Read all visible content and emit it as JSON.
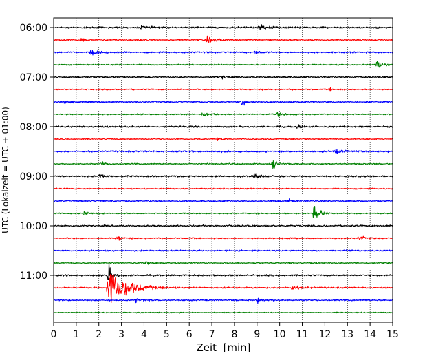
{
  "chart_data": {
    "type": "line",
    "title": "",
    "xlabel": "Zeit  [min]",
    "ylabel": "UTC (Lokalzeit = UTC + 01:00)",
    "xlim": [
      0,
      15
    ],
    "x_ticks": [
      "0",
      "1",
      "2",
      "3",
      "4",
      "5",
      "6",
      "7",
      "8",
      "9",
      "10",
      "11",
      "12",
      "13",
      "14",
      "15"
    ],
    "y_tick_labels": [
      "06:00",
      "07:00",
      "08:00",
      "09:00",
      "10:00",
      "11:00"
    ],
    "traces_per_hour": 4,
    "trace_minutes": 15,
    "grid": "vertical-dotted",
    "trace_color_cycle": [
      "#000000",
      "#ff0000",
      "#0000ff",
      "#008000"
    ],
    "series": [
      {
        "start": "06:00",
        "color": "#000000",
        "noise": 0.8,
        "events": [
          {
            "x": 3.9,
            "amp": 2.5,
            "dur": 0.2
          },
          {
            "x": 9.1,
            "amp": 3,
            "dur": 0.3
          }
        ]
      },
      {
        "start": "06:15",
        "color": "#ff0000",
        "noise": 0.7,
        "events": [
          {
            "x": 1.2,
            "amp": 2,
            "dur": 0.2
          },
          {
            "x": 6.8,
            "amp": 2.5,
            "dur": 0.3
          }
        ]
      },
      {
        "start": "06:30",
        "color": "#0000ff",
        "noise": 0.7,
        "events": [
          {
            "x": 1.6,
            "amp": 2.5,
            "dur": 0.3
          },
          {
            "x": 8.9,
            "amp": 2,
            "dur": 0.2
          }
        ]
      },
      {
        "start": "06:45",
        "color": "#008000",
        "noise": 0.6,
        "events": [
          {
            "x": 14.3,
            "amp": 6,
            "dur": 0.15
          }
        ]
      },
      {
        "start": "07:00",
        "color": "#000000",
        "noise": 0.8,
        "events": [
          {
            "x": 7.4,
            "amp": 2,
            "dur": 0.2
          }
        ]
      },
      {
        "start": "07:15",
        "color": "#ff0000",
        "noise": 0.6,
        "events": [
          {
            "x": 12.2,
            "amp": 1.5,
            "dur": 0.2
          }
        ]
      },
      {
        "start": "07:30",
        "color": "#0000ff",
        "noise": 0.7,
        "events": [
          {
            "x": 0.5,
            "amp": 2.5,
            "dur": 0.2
          },
          {
            "x": 8.3,
            "amp": 4,
            "dur": 0.2
          }
        ]
      },
      {
        "start": "07:45",
        "color": "#008000",
        "noise": 0.6,
        "events": [
          {
            "x": 6.6,
            "amp": 2.5,
            "dur": 0.3
          },
          {
            "x": 9.9,
            "amp": 3,
            "dur": 0.2
          }
        ]
      },
      {
        "start": "08:00",
        "color": "#000000",
        "noise": 0.8,
        "events": [
          {
            "x": 10.8,
            "amp": 1.5,
            "dur": 0.2
          }
        ]
      },
      {
        "start": "08:15",
        "color": "#ff0000",
        "noise": 0.6,
        "events": [
          {
            "x": 7.2,
            "amp": 1.5,
            "dur": 0.2
          }
        ]
      },
      {
        "start": "08:30",
        "color": "#0000ff",
        "noise": 0.8,
        "events": [
          {
            "x": 12.4,
            "amp": 2,
            "dur": 0.3
          }
        ]
      },
      {
        "start": "08:45",
        "color": "#008000",
        "noise": 0.6,
        "events": [
          {
            "x": 2.1,
            "amp": 2,
            "dur": 0.2
          },
          {
            "x": 9.7,
            "amp": 5,
            "dur": 0.15
          }
        ]
      },
      {
        "start": "09:00",
        "color": "#000000",
        "noise": 0.8,
        "events": [
          {
            "x": 2,
            "amp": 3,
            "dur": 0.2
          },
          {
            "x": 8.9,
            "amp": 3,
            "dur": 0.2
          }
        ]
      },
      {
        "start": "09:15",
        "color": "#ff0000",
        "noise": 0.6,
        "events": []
      },
      {
        "start": "09:30",
        "color": "#0000ff",
        "noise": 0.7,
        "events": [
          {
            "x": 10.4,
            "amp": 2,
            "dur": 0.2
          }
        ]
      },
      {
        "start": "09:45",
        "color": "#008000",
        "noise": 0.6,
        "events": [
          {
            "x": 1.3,
            "amp": 2,
            "dur": 0.2
          },
          {
            "x": 11.5,
            "amp": 8,
            "dur": 0.25
          }
        ]
      },
      {
        "start": "10:00",
        "color": "#000000",
        "noise": 0.8,
        "events": []
      },
      {
        "start": "10:15",
        "color": "#ff0000",
        "noise": 0.6,
        "events": [
          {
            "x": 2.8,
            "amp": 3,
            "dur": 0.2
          },
          {
            "x": 13.5,
            "amp": 2.5,
            "dur": 0.2
          }
        ]
      },
      {
        "start": "10:30",
        "color": "#0000ff",
        "noise": 0.7,
        "events": []
      },
      {
        "start": "10:45",
        "color": "#008000",
        "noise": 0.6,
        "events": [
          {
            "x": 4.1,
            "amp": 1.5,
            "dur": 0.2
          }
        ]
      },
      {
        "start": "11:00",
        "color": "#000000",
        "noise": 0.8,
        "events": [
          {
            "x": 2.4,
            "amp": 12,
            "dur": 0.15
          }
        ]
      },
      {
        "start": "11:15",
        "color": "#ff0000",
        "noise": 0.7,
        "events": [
          {
            "x": 2.4,
            "amp": 20,
            "dur": 0.7
          },
          {
            "x": 10.5,
            "amp": 2,
            "dur": 0.4
          }
        ]
      },
      {
        "start": "11:30",
        "color": "#0000ff",
        "noise": 0.7,
        "events": [
          {
            "x": 3.6,
            "amp": 2,
            "dur": 0.2
          },
          {
            "x": 9,
            "amp": 2,
            "dur": 0.3
          }
        ]
      },
      {
        "start": "11:45",
        "color": "#008000",
        "noise": 0.5,
        "events": []
      }
    ]
  }
}
